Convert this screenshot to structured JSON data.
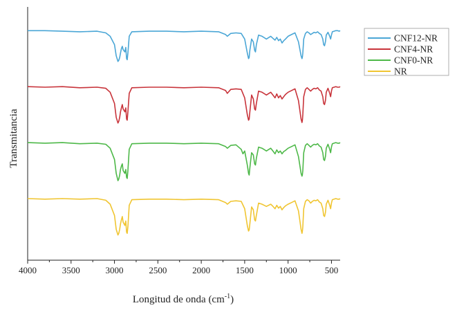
{
  "chart_data": {
    "type": "line",
    "title": "",
    "xlabel": "Longitud de onda (cm",
    "xlabel_superscript": "-1",
    "xlabel_suffix": ")",
    "ylabel": "Transmitancia",
    "xlim": [
      4000,
      400
    ],
    "x_reversed": true,
    "xticks": [
      4000,
      3500,
      3000,
      2500,
      2000,
      1500,
      1000,
      500
    ],
    "yticks": [],
    "grid": false,
    "legend_position": "top-right",
    "series": [
      {
        "name": "CNF12-NR",
        "color": "#4aa6d6",
        "baseline": 3.0,
        "x": [
          4000,
          3800,
          3600,
          3400,
          3200,
          3100,
          3050,
          3000,
          2980,
          2960,
          2950,
          2940,
          2930,
          2920,
          2910,
          2900,
          2880,
          2870,
          2860,
          2853,
          2845,
          2830,
          2800,
          2600,
          2400,
          2200,
          2000,
          1800,
          1720,
          1700,
          1660,
          1600,
          1540,
          1500,
          1470,
          1455,
          1448,
          1440,
          1420,
          1400,
          1385,
          1376,
          1365,
          1340,
          1300,
          1250,
          1200,
          1180,
          1150,
          1130,
          1110,
          1090,
          1070,
          1050,
          1030,
          1000,
          960,
          920,
          880,
          850,
          840,
          835,
          830,
          820,
          800,
          780,
          760,
          740,
          720,
          700,
          680,
          660,
          640,
          620,
          600,
          590,
          580,
          570,
          560,
          540,
          520,
          510,
          500,
          490,
          470,
          450,
          430,
          410,
          400
        ],
        "y": [
          3.0,
          3.0,
          2.99,
          2.98,
          2.99,
          2.96,
          2.9,
          2.75,
          2.55,
          2.45,
          2.47,
          2.52,
          2.6,
          2.68,
          2.72,
          2.66,
          2.62,
          2.7,
          2.5,
          2.48,
          2.6,
          2.9,
          2.98,
          2.99,
          2.99,
          2.98,
          2.99,
          2.98,
          2.93,
          2.9,
          2.95,
          2.96,
          2.95,
          2.85,
          2.6,
          2.5,
          2.52,
          2.65,
          2.85,
          2.8,
          2.65,
          2.62,
          2.75,
          2.92,
          2.9,
          2.85,
          2.9,
          2.87,
          2.83,
          2.88,
          2.82,
          2.85,
          2.78,
          2.82,
          2.85,
          2.9,
          2.93,
          2.96,
          2.8,
          2.55,
          2.5,
          2.53,
          2.6,
          2.85,
          2.95,
          2.98,
          2.96,
          2.93,
          2.95,
          2.97,
          2.96,
          2.98,
          2.95,
          2.93,
          2.85,
          2.75,
          2.73,
          2.8,
          2.92,
          2.97,
          2.9,
          2.85,
          2.92,
          2.98,
          2.99,
          3.0,
          3.0,
          2.99,
          3.0
        ]
      },
      {
        "name": "CNF4-NR",
        "color": "#c8333a",
        "baseline": 2.0,
        "x": [
          4000,
          3800,
          3600,
          3400,
          3200,
          3100,
          3050,
          3000,
          2980,
          2960,
          2950,
          2940,
          2930,
          2920,
          2910,
          2900,
          2880,
          2870,
          2860,
          2853,
          2845,
          2830,
          2800,
          2600,
          2400,
          2200,
          2000,
          1800,
          1720,
          1700,
          1660,
          1600,
          1540,
          1500,
          1470,
          1455,
          1448,
          1440,
          1420,
          1400,
          1385,
          1376,
          1365,
          1340,
          1300,
          1250,
          1200,
          1180,
          1150,
          1130,
          1110,
          1090,
          1070,
          1050,
          1030,
          1000,
          960,
          920,
          880,
          850,
          840,
          835,
          830,
          820,
          800,
          780,
          760,
          740,
          720,
          700,
          680,
          660,
          640,
          620,
          600,
          590,
          580,
          570,
          560,
          540,
          520,
          510,
          500,
          490,
          470,
          450,
          430,
          410,
          400
        ],
        "y": [
          2.0,
          1.99,
          2.0,
          1.98,
          1.99,
          1.97,
          1.9,
          1.7,
          1.45,
          1.35,
          1.38,
          1.45,
          1.55,
          1.62,
          1.68,
          1.6,
          1.55,
          1.62,
          1.42,
          1.4,
          1.55,
          1.88,
          1.98,
          1.99,
          1.99,
          1.98,
          1.99,
          1.98,
          1.93,
          1.88,
          1.95,
          1.96,
          1.95,
          1.8,
          1.5,
          1.4,
          1.42,
          1.55,
          1.85,
          1.78,
          1.6,
          1.58,
          1.7,
          1.92,
          1.9,
          1.85,
          1.9,
          1.86,
          1.8,
          1.87,
          1.8,
          1.84,
          1.78,
          1.82,
          1.86,
          1.9,
          1.93,
          1.96,
          1.75,
          1.42,
          1.36,
          1.4,
          1.5,
          1.82,
          1.95,
          1.98,
          1.95,
          1.92,
          1.95,
          1.97,
          1.96,
          1.98,
          1.94,
          1.92,
          1.82,
          1.7,
          1.68,
          1.75,
          1.9,
          1.97,
          1.88,
          1.82,
          1.92,
          1.98,
          1.99,
          2.0,
          1.99,
          1.99,
          2.0
        ]
      },
      {
        "name": "CNF0-NR",
        "color": "#4db848",
        "baseline": 1.0,
        "x": [
          4000,
          3800,
          3600,
          3400,
          3200,
          3100,
          3050,
          3000,
          2980,
          2960,
          2950,
          2940,
          2930,
          2920,
          2910,
          2900,
          2880,
          2870,
          2860,
          2853,
          2845,
          2830,
          2800,
          2600,
          2400,
          2200,
          2000,
          1800,
          1720,
          1700,
          1660,
          1600,
          1540,
          1520,
          1500,
          1470,
          1455,
          1448,
          1440,
          1420,
          1400,
          1385,
          1376,
          1365,
          1340,
          1300,
          1250,
          1200,
          1180,
          1150,
          1130,
          1110,
          1090,
          1070,
          1050,
          1030,
          1000,
          960,
          920,
          880,
          850,
          840,
          835,
          830,
          820,
          800,
          780,
          760,
          740,
          720,
          700,
          680,
          660,
          640,
          620,
          600,
          590,
          580,
          570,
          560,
          540,
          520,
          510,
          500,
          490,
          470,
          450,
          430,
          410,
          400
        ],
        "y": [
          1.0,
          0.99,
          1.0,
          0.98,
          0.99,
          0.97,
          0.9,
          0.7,
          0.45,
          0.32,
          0.35,
          0.42,
          0.52,
          0.58,
          0.62,
          0.5,
          0.45,
          0.52,
          0.38,
          0.36,
          0.5,
          0.88,
          0.98,
          0.99,
          0.99,
          0.98,
          0.99,
          0.98,
          0.93,
          0.9,
          0.95,
          0.96,
          0.88,
          0.8,
          0.85,
          0.6,
          0.45,
          0.42,
          0.55,
          0.82,
          0.78,
          0.62,
          0.6,
          0.72,
          0.92,
          0.9,
          0.85,
          0.9,
          0.86,
          0.8,
          0.87,
          0.82,
          0.85,
          0.8,
          0.84,
          0.86,
          0.9,
          0.93,
          0.96,
          0.75,
          0.45,
          0.4,
          0.43,
          0.5,
          0.82,
          0.95,
          0.98,
          0.95,
          0.92,
          0.95,
          0.97,
          0.96,
          0.98,
          0.94,
          0.92,
          0.82,
          0.7,
          0.68,
          0.75,
          0.9,
          0.97,
          0.88,
          0.82,
          0.92,
          0.98,
          0.99,
          1.0,
          0.99,
          0.99,
          1.0
        ]
      },
      {
        "name": "NR",
        "color": "#f0c531",
        "baseline": 0.0,
        "x": [
          4000,
          3800,
          3600,
          3400,
          3200,
          3100,
          3050,
          3000,
          2980,
          2960,
          2950,
          2940,
          2930,
          2920,
          2910,
          2900,
          2880,
          2870,
          2860,
          2853,
          2845,
          2830,
          2800,
          2600,
          2400,
          2200,
          2000,
          1800,
          1720,
          1700,
          1660,
          1600,
          1540,
          1500,
          1470,
          1455,
          1448,
          1440,
          1420,
          1400,
          1385,
          1376,
          1365,
          1340,
          1300,
          1250,
          1200,
          1180,
          1150,
          1130,
          1110,
          1090,
          1070,
          1050,
          1030,
          1000,
          960,
          920,
          880,
          850,
          840,
          835,
          830,
          820,
          800,
          780,
          760,
          740,
          720,
          700,
          680,
          660,
          640,
          620,
          600,
          590,
          580,
          570,
          560,
          540,
          520,
          510,
          500,
          490,
          470,
          450,
          430,
          410,
          400
        ],
        "y": [
          0.0,
          -0.01,
          0.0,
          -0.01,
          0.0,
          -0.03,
          -0.1,
          -0.3,
          -0.55,
          -0.65,
          -0.62,
          -0.55,
          -0.45,
          -0.38,
          -0.32,
          -0.42,
          -0.48,
          -0.4,
          -0.6,
          -0.62,
          -0.5,
          -0.12,
          -0.02,
          -0.01,
          -0.01,
          -0.02,
          -0.01,
          -0.02,
          -0.07,
          -0.1,
          -0.05,
          -0.04,
          -0.05,
          -0.18,
          -0.48,
          -0.58,
          -0.56,
          -0.45,
          -0.15,
          -0.2,
          -0.38,
          -0.4,
          -0.3,
          -0.08,
          -0.1,
          -0.14,
          -0.1,
          -0.13,
          -0.18,
          -0.12,
          -0.17,
          -0.14,
          -0.2,
          -0.16,
          -0.13,
          -0.1,
          -0.07,
          -0.04,
          -0.22,
          -0.55,
          -0.62,
          -0.58,
          -0.5,
          -0.18,
          -0.05,
          -0.02,
          -0.04,
          -0.08,
          -0.05,
          -0.03,
          -0.04,
          -0.02,
          -0.06,
          -0.08,
          -0.18,
          -0.3,
          -0.32,
          -0.25,
          -0.1,
          -0.03,
          -0.12,
          -0.18,
          -0.08,
          -0.02,
          -0.01,
          0.0,
          -0.01,
          -0.01,
          0.0
        ]
      }
    ]
  }
}
